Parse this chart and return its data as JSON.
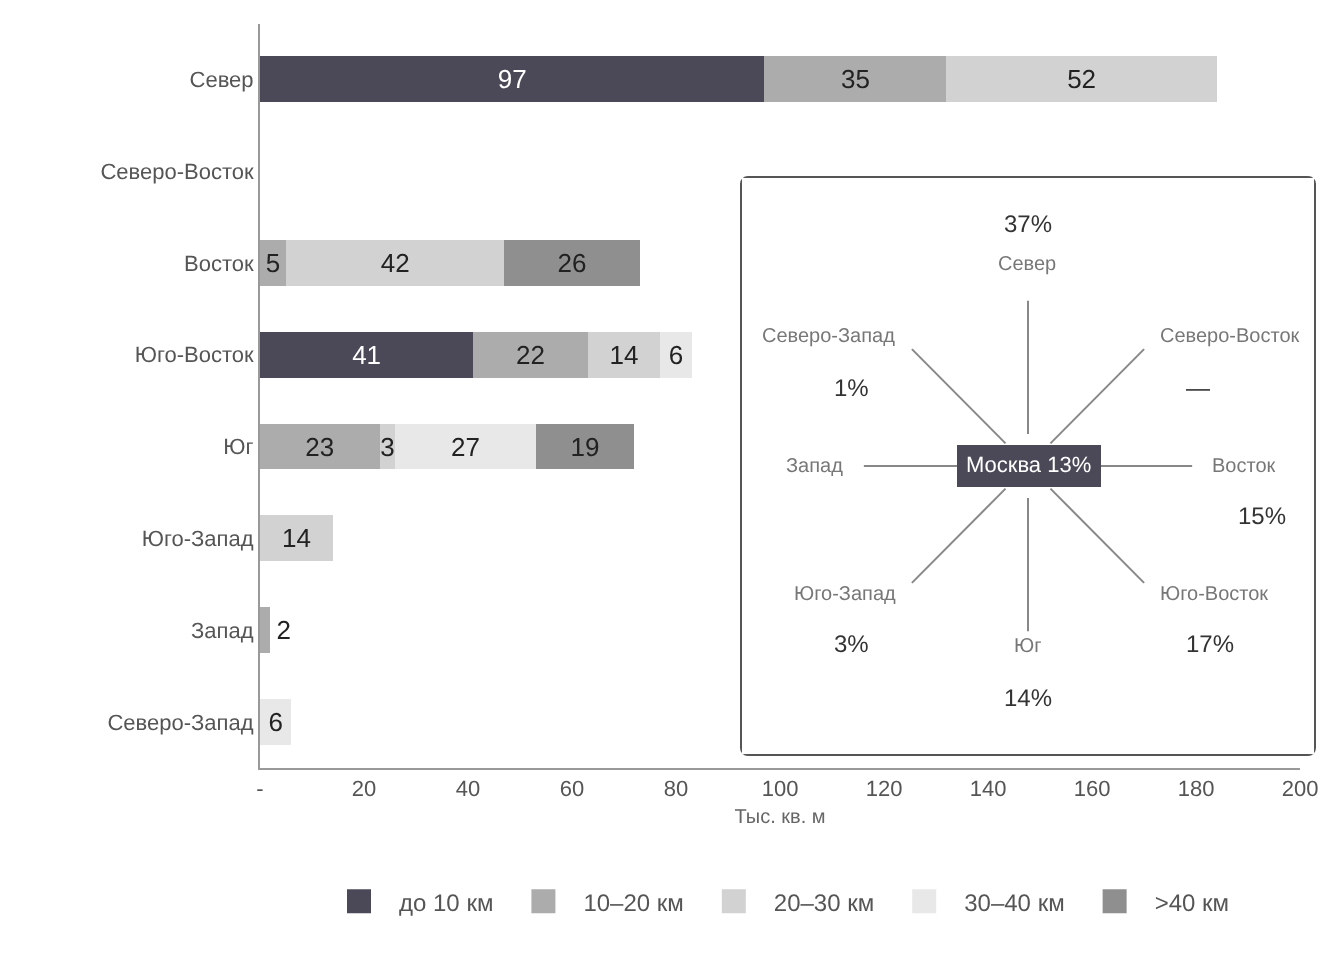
{
  "chart_data": [
    {
      "type": "bar",
      "orientation": "horizontal",
      "stacked": true,
      "data_labels": true,
      "legend": "bottom",
      "grid": false,
      "xlabel": "Тыс. кв. м",
      "categories": [
        "Север",
        "Северо-Восток",
        "Восток",
        "Юго-Восток",
        "Юг",
        "Юго-Запад",
        "Запад",
        "Северо-Запад"
      ],
      "xlim": [
        0,
        200
      ],
      "xticks": [
        {
          "value": 0,
          "label": "-"
        },
        20,
        40,
        60,
        80,
        100,
        120,
        140,
        160,
        180,
        200
      ],
      "series": [
        {
          "name": "до 10 км",
          "color": "#4b4858",
          "values": [
            97,
            null,
            null,
            41,
            null,
            null,
            null,
            null
          ]
        },
        {
          "name": "10–20 км",
          "color": "#acacac",
          "values": [
            35,
            null,
            5,
            22,
            23,
            null,
            2,
            null
          ]
        },
        {
          "name": "20–30 км",
          "color": "#d2d2d2",
          "values": [
            52,
            null,
            42,
            14,
            3,
            14,
            null,
            null
          ]
        },
        {
          "name": "30–40 км",
          "color": "#e8e8e8",
          "values": [
            null,
            null,
            null,
            6,
            27,
            null,
            null,
            6
          ]
        },
        {
          "name": ">40 км",
          "color": "#8f8f8f",
          "values": [
            null,
            null,
            26,
            null,
            19,
            null,
            null,
            null
          ]
        }
      ]
    },
    {
      "type": "other",
      "categories": [
        "Север",
        "Северо-Восток",
        "Восток",
        "Юго-Восток",
        "Юг",
        "Юго-Запад",
        "Запад",
        "Северо-Запад"
      ],
      "value_labels": [
        "37%",
        "—",
        "15%",
        "17%",
        "14%",
        "3%",
        null,
        "1%"
      ],
      "annotations": [
        "Москва 13%"
      ]
    }
  ]
}
